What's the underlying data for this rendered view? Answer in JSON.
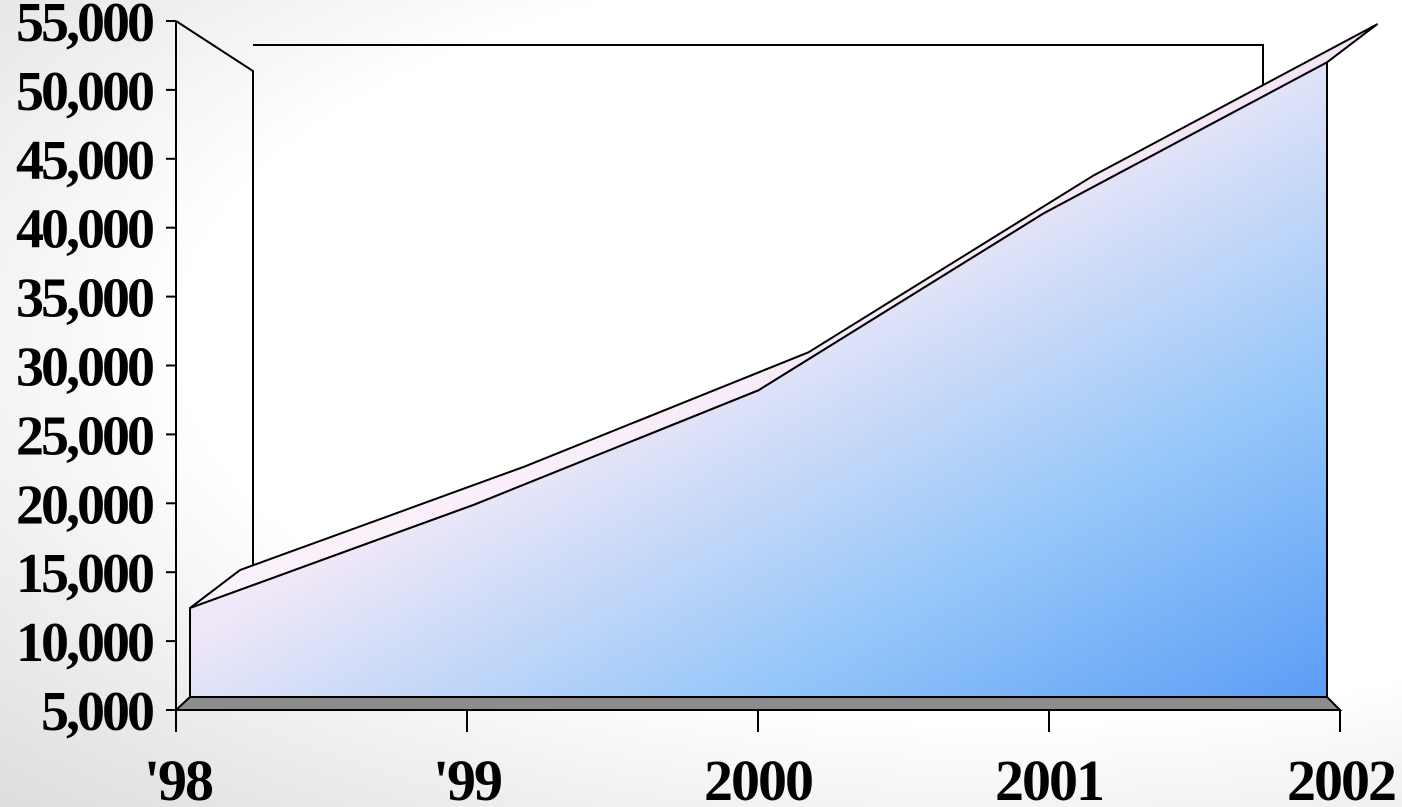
{
  "chart_data": {
    "type": "area",
    "style": "3d",
    "title": "",
    "xlabel": "",
    "ylabel": "",
    "categories": [
      "'98",
      "'99",
      "2000",
      "2001",
      "2002"
    ],
    "series": [
      {
        "values": [
          12400,
          19900,
          28200,
          41000,
          52000
        ]
      }
    ],
    "ylim": [
      5000,
      55000
    ],
    "yticks": [
      "5,000",
      "10,000",
      "15,000",
      "20,000",
      "25,000",
      "30,000",
      "35,000",
      "40,000",
      "45,000",
      "50,000",
      "55,000"
    ],
    "grid": false,
    "legend": "none",
    "colors": {
      "area_top": "#f7e8f5",
      "area_bottom": "#5b9cf5",
      "floor": "#8c8c8c",
      "outline": "#000000"
    }
  }
}
